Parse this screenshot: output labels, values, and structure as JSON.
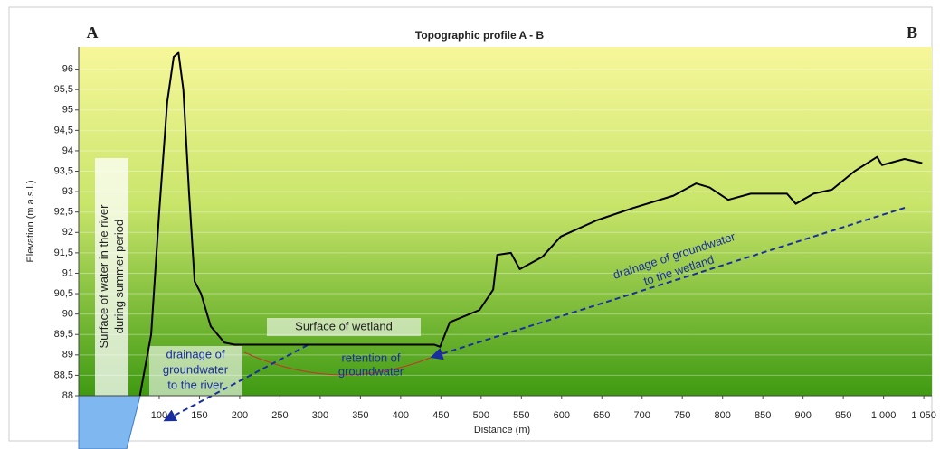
{
  "chart_data": {
    "type": "line",
    "title": "Topographic profile A - B",
    "start_label": "A",
    "end_label": "B",
    "xlabel": "Distance (m)",
    "ylabel": "Elevation (m a.s.l.)",
    "x": [
      76,
      90,
      100,
      110,
      118,
      124,
      130,
      137,
      144,
      152,
      164,
      181,
      194,
      260,
      350,
      442,
      449,
      461,
      498,
      515,
      520,
      537,
      548,
      576,
      599,
      644,
      689,
      739,
      767,
      784,
      807,
      835,
      880,
      891,
      913,
      936,
      964,
      992,
      998,
      1026,
      1048
    ],
    "series": [
      {
        "color": "#000000",
        "values": [
          88,
          89.5,
          92.5,
          95.2,
          96.3,
          96.4,
          95.5,
          93,
          90.8,
          90.5,
          89.7,
          89.3,
          89.25,
          89.25,
          89.25,
          89.25,
          89.2,
          89.8,
          90.1,
          90.6,
          91.45,
          91.5,
          91.1,
          91.4,
          91.9,
          92.3,
          92.6,
          92.9,
          93.2,
          93.1,
          92.8,
          92.95,
          92.95,
          92.7,
          92.95,
          93.05,
          93.5,
          93.85,
          93.65,
          93.8,
          93.7
        ]
      }
    ],
    "xlim": [
      0,
      1060
    ],
    "ylim": [
      88,
      96.5
    ],
    "xticks": [
      100,
      150,
      200,
      250,
      300,
      350,
      400,
      450,
      500,
      550,
      600,
      650,
      700,
      750,
      800,
      850,
      900,
      950,
      {
        "value": 1000,
        "label": "1 000"
      },
      {
        "value": 1050,
        "label": "1 050"
      }
    ],
    "yticks": [
      88,
      {
        "value": 88.5,
        "label": "88,5"
      },
      89,
      {
        "value": 89.5,
        "label": "89,5"
      },
      90,
      {
        "value": 90.5,
        "label": "90,5"
      },
      91,
      {
        "value": 91.5,
        "label": "91,5"
      },
      92,
      {
        "value": 92.5,
        "label": "92,5"
      },
      93,
      {
        "value": 93.5,
        "label": "93,5"
      },
      94,
      {
        "value": 94.5,
        "label": "94,5"
      },
      95,
      {
        "value": 95.5,
        "label": "95,5"
      },
      96
    ],
    "grid": true,
    "annotations": [
      {
        "lines": [
          "Surface of water in the river",
          "during summer period"
        ]
      },
      {
        "lines": [
          "Surface of wetland"
        ]
      },
      {
        "lines": [
          "drainage of",
          "groundwater",
          "to the river"
        ]
      },
      {
        "lines": [
          "retention of",
          "groundwater"
        ]
      },
      {
        "lines": [
          "drainage of groundwater",
          "to the wetland"
        ]
      }
    ]
  }
}
